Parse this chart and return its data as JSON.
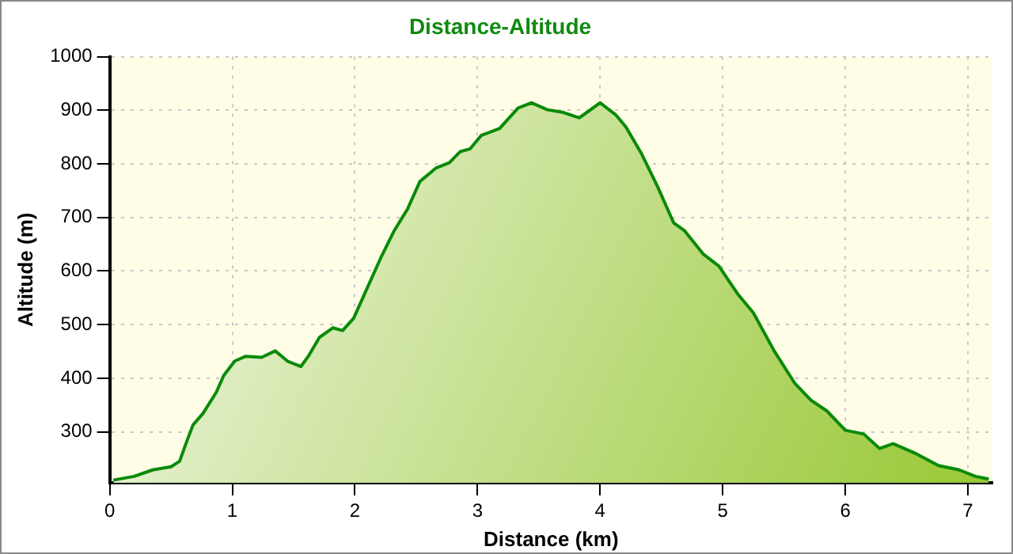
{
  "chart_data": {
    "type": "area",
    "title": "Distance-Altitude",
    "xlabel": "Distance (km)",
    "ylabel": "Altitude (m)",
    "xlim": [
      0,
      7.2
    ],
    "xticks": [
      0,
      1,
      2,
      3,
      4,
      5,
      6,
      7
    ],
    "ylim": [
      205,
      1000
    ],
    "yticks": [
      300,
      400,
      500,
      600,
      700,
      800,
      900,
      1000
    ],
    "grid": true,
    "legend": false,
    "marker": "none",
    "line_style": "solid",
    "series": [
      {
        "color": "#0a8a0a",
        "x": [
          0.03,
          0.2,
          0.35,
          0.5,
          0.57,
          0.63,
          0.68,
          0.76,
          0.87,
          0.93,
          1.02,
          1.11,
          1.24,
          1.35,
          1.45,
          1.56,
          1.62,
          1.71,
          1.82,
          1.9,
          1.99,
          2.1,
          2.21,
          2.32,
          2.43,
          2.53,
          2.66,
          2.77,
          2.86,
          2.94,
          3.03,
          3.18,
          3.33,
          3.44,
          3.57,
          3.7,
          3.83,
          3.91,
          4.0,
          4.13,
          4.21,
          4.34,
          4.47,
          4.6,
          4.69,
          4.84,
          4.97,
          5.12,
          5.25,
          5.42,
          5.59,
          5.72,
          5.85,
          6.0,
          6.15,
          6.28,
          6.39,
          6.58,
          6.76,
          6.93,
          7.06,
          7.17
        ],
        "values": [
          210,
          217,
          229,
          235,
          245,
          283,
          313,
          334,
          374,
          405,
          432,
          441,
          439,
          451,
          432,
          422,
          441,
          476,
          494,
          489,
          512,
          568,
          624,
          675,
          716,
          767,
          792,
          802,
          823,
          828,
          853,
          866,
          904,
          914,
          901,
          896,
          886,
          899,
          914,
          891,
          869,
          818,
          757,
          690,
          675,
          632,
          609,
          558,
          522,
          451,
          390,
          359,
          339,
          303,
          296,
          269,
          278,
          259,
          237,
          229,
          217,
          212
        ]
      }
    ]
  }
}
